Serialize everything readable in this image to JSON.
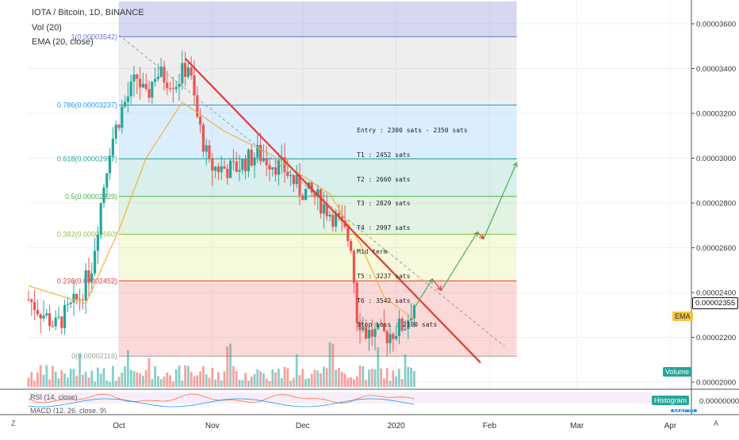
{
  "header": {
    "symbol": "IOTA / Bitcoin, 1D, BINANCE",
    "vol": "Vol (20)",
    "ema": "EMA (20, close)",
    "rsi_label": "RSI (14, close)",
    "macd_label": "MACD (12, 26, close, 9)"
  },
  "notes": [
    "Entry : 2300 sats - 2350 sats",
    "T1 : 2452 sats",
    "T2 : 2660 sats",
    "T3 : 2829 sats",
    "T4 : 2997 sats",
    "Mid term",
    "T5 : 3237 sats",
    "T6 : 3542 sats",
    "Stop Loss : 2100 sats"
  ],
  "tags": {
    "ema": "EMA",
    "volume": "Volume",
    "histogram": "Histogram",
    "macd": "MACD",
    "price_marker": "0.00002355",
    "rsi_zero": "0.00000000"
  },
  "corner": {
    "left": "Z",
    "right": "A"
  },
  "colors": {
    "up": "#26a69a",
    "down": "#ef5350",
    "trendline": "#e53935",
    "ema": "#f2b33d",
    "arrow_up": "#4caf50",
    "arrow_down": "#e53935"
  },
  "chart_data": {
    "type": "candlestick",
    "x_axis_labels": [
      {
        "label": "Oct",
        "date": "2019-10-01"
      },
      {
        "label": "Nov",
        "date": "2019-11-01"
      },
      {
        "label": "Dec",
        "date": "2019-12-01"
      },
      {
        "label": "2020",
        "date": "2020-01-01"
      },
      {
        "label": "Feb",
        "date": "2020-02-01"
      },
      {
        "label": "Mar",
        "date": "2020-03-01"
      },
      {
        "label": "Apr",
        "date": "2020-04-01"
      }
    ],
    "x_range": [
      "2019-09-01",
      "2020-04-08"
    ],
    "y_ticks": [
      3.6e-05,
      3.4e-05,
      3.2e-05,
      3e-05,
      2.8e-05,
      2.6e-05,
      2.4e-05,
      2.2e-05,
      2e-05
    ],
    "y_tick_labels": [
      "0.00003600",
      "0.00003400",
      "0.00003200",
      "0.00003000",
      "0.00002800",
      "0.00002600",
      "0.00002400",
      "0.00002200",
      "0.00002000"
    ],
    "ylim": [
      1.96e-05,
      3.74e-05
    ],
    "last_price": 2.355e-05,
    "fib_levels": [
      {
        "ratio": "1",
        "text": "1(0.00003542)",
        "price": 3.542e-05,
        "line": "#6b74c9",
        "fill": "rgba(120,123,210,0.30)"
      },
      {
        "ratio": "0.786",
        "text": "0.786(0.00003237)",
        "price": 3.237e-05,
        "line": "#2196f3",
        "fill": "rgba(158,158,158,0.18)"
      },
      {
        "ratio": "0.618",
        "text": "0.618(0.00002997)",
        "price": 2.997e-05,
        "line": "#26a69a",
        "fill": "rgba(33,150,243,0.16)"
      },
      {
        "ratio": "0.5",
        "text": "0.5(0.00002829)",
        "price": 2.829e-05,
        "line": "#4caf50",
        "fill": "rgba(38,166,154,0.18)"
      },
      {
        "ratio": "0.382",
        "text": "0.382(0.00002660)",
        "price": 2.66e-05,
        "line": "#8bc34a",
        "fill": "rgba(76,175,80,0.16)"
      },
      {
        "ratio": "0.236",
        "text": "0.236(0.00002452)",
        "price": 2.452e-05,
        "line": "#e53935",
        "fill": "rgba(205,220,57,0.18)"
      },
      {
        "ratio": "0",
        "text": "0(0.00002116)",
        "price": 2.116e-05,
        "line": "#9e9e9e",
        "fill": "rgba(239,83,80,0.22)"
      }
    ],
    "fib_range": [
      "2019-10-01",
      "2020-02-10"
    ],
    "fib_top_band": 3.7e-05,
    "trendline": [
      {
        "date": "2019-10-23",
        "price": 3.445e-05
      },
      {
        "date": "2020-01-29",
        "price": 2.087e-05
      }
    ],
    "dashed_line": [
      {
        "date": "2019-10-01",
        "price": 3.55e-05
      },
      {
        "date": "2020-02-06",
        "price": 2.16e-05
      }
    ],
    "projection": [
      {
        "date": "2020-01-07",
        "price": 2.33e-05
      },
      {
        "date": "2020-01-13",
        "price": 2.46e-05
      },
      {
        "date": "2020-01-16",
        "price": 2.41e-05
      },
      {
        "date": "2020-01-28",
        "price": 2.67e-05
      },
      {
        "date": "2020-01-30",
        "price": 2.64e-05
      },
      {
        "date": "2020-02-10",
        "price": 2.98e-05
      }
    ],
    "anchors": [
      {
        "date": "2019-09-01",
        "price": 2.37e-05
      },
      {
        "date": "2019-09-10",
        "price": 2.25e-05
      },
      {
        "date": "2019-09-18",
        "price": 2.38e-05
      },
      {
        "date": "2019-09-22",
        "price": 2.52e-05
      },
      {
        "date": "2019-09-25",
        "price": 2.8e-05
      },
      {
        "date": "2019-09-28",
        "price": 3.05e-05
      },
      {
        "date": "2019-10-02",
        "price": 3.22e-05
      },
      {
        "date": "2019-10-07",
        "price": 3.36e-05
      },
      {
        "date": "2019-10-10",
        "price": 3.26e-05
      },
      {
        "date": "2019-10-13",
        "price": 3.38e-05
      },
      {
        "date": "2019-10-20",
        "price": 3.34e-05
      },
      {
        "date": "2019-10-24",
        "price": 3.42e-05
      },
      {
        "date": "2019-10-27",
        "price": 3.18e-05
      },
      {
        "date": "2019-10-31",
        "price": 2.96e-05
      },
      {
        "date": "2019-11-08",
        "price": 2.95e-05
      },
      {
        "date": "2019-11-16",
        "price": 3.02e-05
      },
      {
        "date": "2019-11-25",
        "price": 2.95e-05
      },
      {
        "date": "2019-11-30",
        "price": 2.86e-05
      },
      {
        "date": "2019-12-05",
        "price": 2.83e-05
      },
      {
        "date": "2019-12-12",
        "price": 2.73e-05
      },
      {
        "date": "2019-12-17",
        "price": 2.62e-05
      },
      {
        "date": "2019-12-19",
        "price": 2.3e-05
      },
      {
        "date": "2019-12-22",
        "price": 2.22e-05
      },
      {
        "date": "2019-12-29",
        "price": 2.21e-05
      },
      {
        "date": "2020-01-04",
        "price": 2.26e-05
      },
      {
        "date": "2020-01-07",
        "price": 2.35e-05
      }
    ],
    "ema_anchors": [
      {
        "date": "2019-09-01",
        "price": 2.43e-05
      },
      {
        "date": "2019-09-20",
        "price": 2.35e-05
      },
      {
        "date": "2019-10-01",
        "price": 2.68e-05
      },
      {
        "date": "2019-10-10",
        "price": 3e-05
      },
      {
        "date": "2019-10-22",
        "price": 3.25e-05
      },
      {
        "date": "2019-11-05",
        "price": 3.12e-05
      },
      {
        "date": "2019-11-20",
        "price": 3.02e-05
      },
      {
        "date": "2019-12-10",
        "price": 2.84e-05
      },
      {
        "date": "2019-12-20",
        "price": 2.62e-05
      },
      {
        "date": "2019-12-28",
        "price": 2.38e-05
      },
      {
        "date": "2020-01-07",
        "price": 2.28e-05
      }
    ],
    "data_end": "2020-01-07"
  }
}
